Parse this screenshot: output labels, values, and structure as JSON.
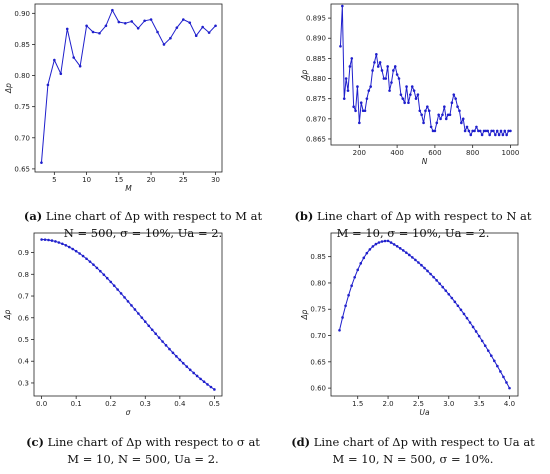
{
  "chart_data": [
    {
      "type": "line",
      "panel": "a",
      "xlabel": "M",
      "ylabel": "Δp",
      "xlim": [
        2,
        31
      ],
      "ylim": [
        0.645,
        0.915
      ],
      "xticks": [
        5,
        10,
        15,
        20,
        25,
        30
      ],
      "yticks": [
        0.65,
        0.7,
        0.75,
        0.8,
        0.85,
        0.9
      ],
      "ytick_decimals": 2,
      "grid": false,
      "color": "#1f1fcc",
      "marker": true,
      "x": [
        3,
        4,
        5,
        6,
        7,
        8,
        9,
        10,
        11,
        12,
        13,
        14,
        15,
        16,
        17,
        18,
        19,
        20,
        21,
        22,
        23,
        24,
        25,
        26,
        27,
        28,
        29,
        30
      ],
      "y": [
        0.66,
        0.785,
        0.825,
        0.803,
        0.875,
        0.829,
        0.815,
        0.88,
        0.87,
        0.868,
        0.88,
        0.905,
        0.886,
        0.884,
        0.887,
        0.876,
        0.888,
        0.89,
        0.87,
        0.85,
        0.86,
        0.877,
        0.89,
        0.885,
        0.864,
        0.878,
        0.869,
        0.88
      ],
      "caption": {
        "label": "(a)",
        "line1": "Line chart of Δp with respect to M at",
        "line2": "N = 500, σ = 10%, Ua = 2."
      }
    },
    {
      "type": "line",
      "panel": "b",
      "xlabel": "N",
      "ylabel": "Δp",
      "xlim": [
        50,
        1040
      ],
      "ylim": [
        0.8635,
        0.8985
      ],
      "xticks": [
        200,
        400,
        600,
        800,
        1000
      ],
      "yticks": [
        0.865,
        0.87,
        0.875,
        0.88,
        0.885,
        0.89,
        0.895
      ],
      "ytick_decimals": 3,
      "grid": false,
      "color": "#1f1fcc",
      "marker": true,
      "x": [
        100,
        110,
        120,
        130,
        140,
        150,
        160,
        170,
        180,
        190,
        200,
        210,
        220,
        230,
        240,
        250,
        260,
        270,
        280,
        290,
        300,
        310,
        320,
        330,
        340,
        350,
        360,
        370,
        380,
        390,
        400,
        410,
        420,
        430,
        440,
        450,
        460,
        470,
        480,
        490,
        500,
        510,
        520,
        530,
        540,
        550,
        560,
        570,
        580,
        590,
        600,
        610,
        620,
        630,
        640,
        650,
        660,
        670,
        680,
        690,
        700,
        710,
        720,
        730,
        740,
        750,
        760,
        770,
        780,
        790,
        800,
        810,
        820,
        830,
        840,
        850,
        860,
        870,
        880,
        890,
        900,
        910,
        920,
        930,
        940,
        950,
        960,
        970,
        980,
        990,
        1000
      ],
      "y": [
        0.888,
        0.898,
        0.875,
        0.88,
        0.877,
        0.883,
        0.885,
        0.873,
        0.872,
        0.878,
        0.869,
        0.874,
        0.872,
        0.872,
        0.875,
        0.877,
        0.878,
        0.882,
        0.884,
        0.886,
        0.883,
        0.884,
        0.882,
        0.88,
        0.88,
        0.883,
        0.877,
        0.879,
        0.882,
        0.883,
        0.881,
        0.88,
        0.876,
        0.875,
        0.874,
        0.878,
        0.874,
        0.876,
        0.878,
        0.877,
        0.875,
        0.876,
        0.872,
        0.871,
        0.869,
        0.872,
        0.873,
        0.872,
        0.868,
        0.867,
        0.867,
        0.869,
        0.871,
        0.87,
        0.871,
        0.873,
        0.87,
        0.871,
        0.871,
        0.874,
        0.876,
        0.875,
        0.873,
        0.872,
        0.869,
        0.87,
        0.867,
        0.868,
        0.867,
        0.866,
        0.867,
        0.867,
        0.868,
        0.867,
        0.867,
        0.866,
        0.867,
        0.867,
        0.867,
        0.866,
        0.867,
        0.867,
        0.866,
        0.867,
        0.866,
        0.867,
        0.866,
        0.867,
        0.866,
        0.867,
        0.867
      ],
      "caption": {
        "label": "(b)",
        "line1": "Line chart of Δp with respect to N at",
        "line2": "M = 10, σ = 10%, Ua = 2."
      }
    },
    {
      "type": "line",
      "panel": "c",
      "xlabel": "σ",
      "ylabel": "Δp",
      "xlim": [
        -0.022,
        0.522
      ],
      "ylim": [
        0.24,
        0.99
      ],
      "xticks": [
        0.0,
        0.1,
        0.2,
        0.3,
        0.4,
        0.5
      ],
      "yticks": [
        0.3,
        0.4,
        0.5,
        0.6,
        0.7,
        0.8,
        0.9
      ],
      "xtick_decimals": 1,
      "ytick_decimals": 1,
      "grid": false,
      "color": "#1f1fcc",
      "marker": true,
      "generator": "gaussian_decay",
      "x_start": 0.0,
      "x_end": 0.5,
      "n_points": 51,
      "y_start": 0.96,
      "y_end": 0.27,
      "caption": {
        "label": "(c)",
        "line1": "Line chart of Δp with respect to σ at",
        "line2": "M = 10, N = 500, Ua = 2."
      }
    },
    {
      "type": "line",
      "panel": "d",
      "xlabel": "Ua",
      "ylabel": "Δp",
      "xlim": [
        1.06,
        4.14
      ],
      "ylim": [
        0.585,
        0.895
      ],
      "xticks": [
        1.5,
        2.0,
        2.5,
        3.0,
        3.5,
        4.0
      ],
      "yticks": [
        0.6,
        0.65,
        0.7,
        0.75,
        0.8,
        0.85
      ],
      "xtick_decimals": 1,
      "ytick_decimals": 2,
      "grid": false,
      "color": "#1f1fcc",
      "marker": true,
      "generator": "peak_curve",
      "x_start": 1.2,
      "x_end": 4.0,
      "n_points": 57,
      "peak_x": 2.0,
      "peak_y": 0.88,
      "y_start": 0.71,
      "y_end": 0.6,
      "caption": {
        "label": "(d)",
        "line1": "Line chart of Δp with respect to Ua at",
        "line2": "M = 10, N = 500, σ = 10%."
      }
    }
  ]
}
